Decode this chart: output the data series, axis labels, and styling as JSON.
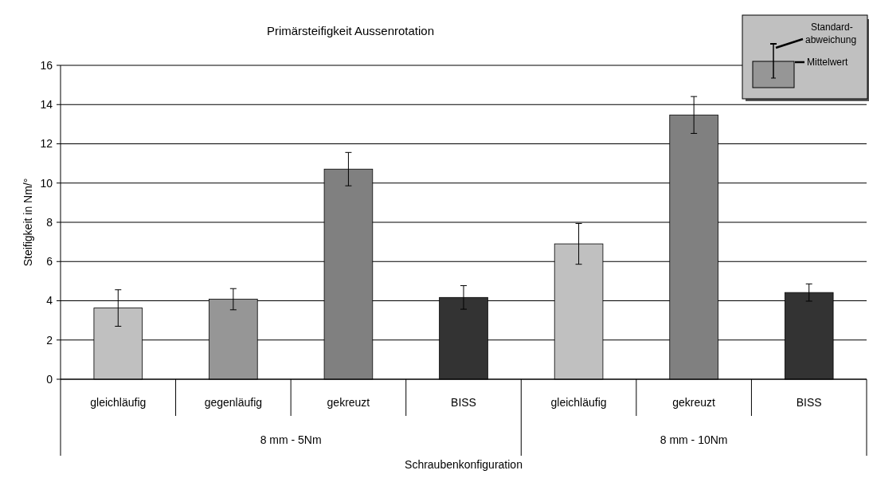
{
  "chart_data": {
    "type": "bar",
    "title": "Primärsteifigkeit Aussenrotation",
    "xlabel": "Schraubenkonfiguration",
    "ylabel": "Steifigkeit in Nm/°",
    "categories": [
      "gleichläufig",
      "gegenläufig",
      "gekreuzt",
      "BISS",
      "gleichläufig",
      "gekreuzt",
      "BISS"
    ],
    "values": [
      3.63,
      4.08,
      10.71,
      4.17,
      6.9,
      13.47,
      4.42
    ],
    "errors": [
      0.93,
      0.54,
      0.85,
      0.6,
      1.04,
      0.94,
      0.44
    ],
    "colors": [
      "#c0c0c0",
      "#969696",
      "#808080",
      "#333333",
      "#c0c0c0",
      "#808080",
      "#333333"
    ],
    "ylim": [
      0,
      16
    ],
    "yticks": [
      0,
      2,
      4,
      6,
      8,
      10,
      12,
      14,
      16
    ],
    "grid": "y",
    "annotations": [
      "8 mm - 5Nm",
      "8 mm - 10Nm",
      "Standard-abweichung",
      "Mittelwert"
    ]
  }
}
